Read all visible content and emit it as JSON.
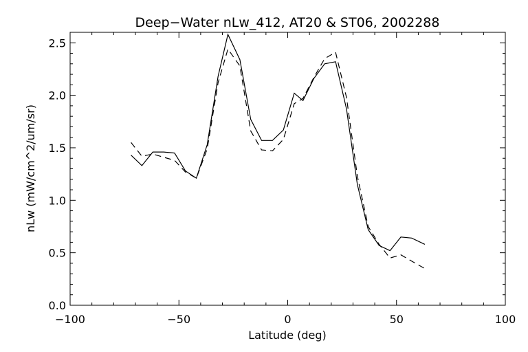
{
  "chart_data": {
    "type": "line",
    "title": "Deep−Water nLw_412, AT20 & ST06, 2002288",
    "xlabel": "Latitude (deg)",
    "ylabel": "nLw (mW/cm^2/um/sr)",
    "xlim": [
      -100,
      100
    ],
    "ylim": [
      0.0,
      2.6
    ],
    "xticks": [
      -100,
      -50,
      0,
      50,
      100
    ],
    "xtick_labels": [
      "−100",
      "−50",
      "0",
      "50",
      "100"
    ],
    "yticks": [
      0.0,
      0.5,
      1.0,
      1.5,
      2.0,
      2.5
    ],
    "ytick_labels": [
      "0.0",
      "0.5",
      "1.0",
      "1.5",
      "2.0",
      "2.5"
    ],
    "grid": false,
    "series": [
      {
        "style": "solid",
        "x": [
          -72,
          -67,
          -62,
          -57,
          -52,
          -47,
          -42,
          -37,
          -32,
          -27.5,
          -22,
          -17,
          -12,
          -7,
          -2,
          3,
          7,
          12,
          17,
          22,
          27,
          32,
          37,
          42,
          47,
          52,
          57,
          63
        ],
        "y": [
          1.43,
          1.33,
          1.46,
          1.46,
          1.45,
          1.28,
          1.21,
          1.53,
          2.18,
          2.58,
          2.34,
          1.77,
          1.57,
          1.57,
          1.67,
          2.02,
          1.95,
          2.16,
          2.3,
          2.32,
          1.87,
          1.15,
          0.72,
          0.57,
          0.52,
          0.65,
          0.64,
          0.58
        ]
      },
      {
        "style": "dashed",
        "x": [
          -72,
          -67,
          -62,
          -57,
          -52,
          -47,
          -42,
          -37,
          -32,
          -27.5,
          -22,
          -17,
          -12,
          -7,
          -2,
          3,
          7,
          12,
          17,
          22,
          27,
          32,
          37,
          42,
          47,
          52,
          57,
          63
        ],
        "y": [
          1.55,
          1.42,
          1.44,
          1.41,
          1.38,
          1.27,
          1.21,
          1.49,
          2.12,
          2.44,
          2.28,
          1.66,
          1.48,
          1.47,
          1.58,
          1.92,
          1.97,
          2.17,
          2.35,
          2.41,
          1.98,
          1.23,
          0.75,
          0.58,
          0.45,
          0.48,
          0.42,
          0.35
        ]
      }
    ]
  }
}
